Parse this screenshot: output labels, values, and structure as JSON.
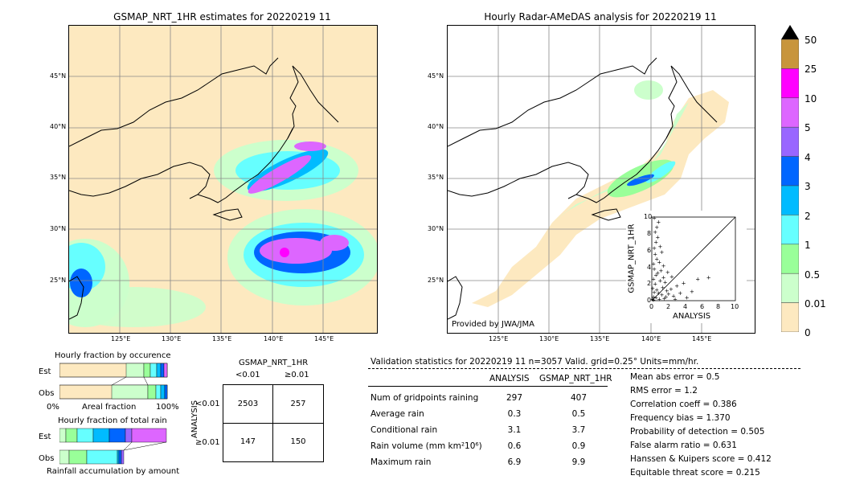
{
  "left_map": {
    "title": "GSMAP_NRT_1HR estimates for 20220219 11",
    "lat_labels": [
      "45°N",
      "40°N",
      "35°N",
      "30°N",
      "25°N"
    ],
    "lon_labels": [
      "125°E",
      "130°E",
      "135°E",
      "140°E",
      "145°E"
    ]
  },
  "right_map": {
    "title": "Hourly Radar-AMeDAS analysis for 20220219 11",
    "lat_labels": [
      "45°N",
      "40°N",
      "35°N",
      "30°N",
      "25°N"
    ],
    "lon_labels": [
      "125°E",
      "130°E",
      "135°E",
      "140°E",
      "145°E"
    ],
    "credit": "Provided by JWA/JMA"
  },
  "colorbar": {
    "labels": [
      "50",
      "25",
      "10",
      "5",
      "4",
      "3",
      "2",
      "1",
      "0.5",
      "0.01",
      "0"
    ],
    "colors": [
      "#c8953c",
      "#ff00ff",
      "#dd66ff",
      "#9966ff",
      "#0066ff",
      "#00bbff",
      "#66ffff",
      "#99ff99",
      "#ccffcc",
      "#fde9c0"
    ]
  },
  "scatter": {
    "ylabel": "GSMAP_NRT_1HR",
    "xlabel": "ANALYSIS",
    "ticks": [
      "0",
      "2",
      "4",
      "6",
      "8",
      "10"
    ]
  },
  "occurrence": {
    "title": "Hourly fraction by occurence",
    "est_label": "Est",
    "obs_label": "Obs",
    "axis_left": "0%",
    "axis_mid": "Areal fraction",
    "axis_right": "100%"
  },
  "total_rain": {
    "title": "Hourly fraction of total rain",
    "est_label": "Est",
    "obs_label": "Obs",
    "footer": "Rainfall accumulation by amount"
  },
  "contingency": {
    "title": "GSMAP_NRT_1HR",
    "col_lt": "<0.01",
    "col_ge": "≥0.01",
    "row_axis": "ANALYSIS",
    "row_lt": "<0.01",
    "row_ge": "≥0.01",
    "a": "2503",
    "b": "257",
    "c": "147",
    "d": "150"
  },
  "validation": {
    "header": "Validation statistics for 20220219 11  n=3057 Valid. grid=0.25° Units=mm/hr.",
    "col_analysis": "ANALYSIS",
    "col_gsmap": "GSMAP_NRT_1HR",
    "rows": [
      {
        "label": "Num of gridpoints raining",
        "analysis": "297",
        "gsmap": "407"
      },
      {
        "label": "Average rain",
        "analysis": "0.3",
        "gsmap": "0.5"
      },
      {
        "label": "Conditional rain",
        "analysis": "3.1",
        "gsmap": "3.7"
      },
      {
        "label": "Rain volume (mm km²10⁶)",
        "analysis": "0.6",
        "gsmap": "0.9"
      },
      {
        "label": "Maximum rain",
        "analysis": "6.9",
        "gsmap": "9.9"
      }
    ],
    "scores": [
      "Mean abs error =    0.5",
      "RMS error =    1.2",
      "Correlation coeff =  0.386",
      "Frequency bias =  1.370",
      "Probability of detection =  0.505",
      "False alarm ratio =  0.631",
      "Hanssen & Kuipers score =  0.412",
      "Equitable threat score =  0.215"
    ]
  },
  "chart_data": {
    "type": "scatter",
    "xlabel": "ANALYSIS",
    "ylabel": "GSMAP_NRT_1HR",
    "xlim": [
      0,
      10
    ],
    "ylim": [
      0,
      10
    ],
    "points": [
      [
        0.1,
        0.2
      ],
      [
        0.2,
        0.5
      ],
      [
        0.3,
        1.0
      ],
      [
        0.1,
        1.5
      ],
      [
        0.4,
        2.0
      ],
      [
        0.2,
        2.6
      ],
      [
        0.5,
        3.1
      ],
      [
        0.3,
        3.8
      ],
      [
        0.2,
        4.4
      ],
      [
        0.6,
        5.0
      ],
      [
        0.4,
        5.6
      ],
      [
        0.3,
        6.3
      ],
      [
        0.5,
        7.0
      ],
      [
        0.7,
        7.6
      ],
      [
        0.4,
        8.2
      ],
      [
        0.6,
        8.8
      ],
      [
        0.8,
        9.4
      ],
      [
        0.3,
        9.9
      ],
      [
        1.0,
        6.5
      ],
      [
        1.2,
        5.8
      ],
      [
        0.9,
        4.6
      ],
      [
        1.1,
        3.6
      ],
      [
        1.4,
        2.8
      ],
      [
        1.6,
        2.2
      ],
      [
        1.3,
        1.6
      ],
      [
        1.8,
        1.2
      ],
      [
        2.0,
        0.8
      ],
      [
        2.3,
        1.4
      ],
      [
        2.6,
        0.6
      ],
      [
        3.0,
        1.8
      ],
      [
        3.4,
        0.9
      ],
      [
        3.8,
        2.1
      ],
      [
        4.2,
        0.4
      ],
      [
        4.8,
        1.1
      ],
      [
        5.5,
        2.6
      ],
      [
        6.8,
        2.8
      ],
      [
        1.5,
        0.3
      ],
      [
        0.8,
        0.9
      ],
      [
        0.6,
        1.3
      ],
      [
        1.0,
        2.4
      ],
      [
        1.9,
        3.4
      ],
      [
        2.4,
        2.9
      ],
      [
        0.2,
        0.1
      ],
      [
        0.5,
        0.4
      ],
      [
        1.2,
        0.7
      ],
      [
        0.9,
        0.2
      ],
      [
        2.8,
        0.2
      ],
      [
        1.7,
        0.5
      ],
      [
        0.7,
        3.3
      ],
      [
        1.4,
        4.2
      ]
    ]
  }
}
